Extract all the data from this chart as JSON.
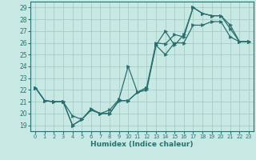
{
  "xlabel": "Humidex (Indice chaleur)",
  "xlim": [
    -0.5,
    23.5
  ],
  "ylim": [
    18.5,
    29.5
  ],
  "xticks": [
    0,
    1,
    2,
    3,
    4,
    5,
    6,
    7,
    8,
    9,
    10,
    11,
    12,
    13,
    14,
    15,
    16,
    17,
    18,
    19,
    20,
    21,
    22,
    23
  ],
  "yticks": [
    19,
    20,
    21,
    22,
    23,
    24,
    25,
    26,
    27,
    28,
    29
  ],
  "bg_color": "#c8e8e4",
  "grid_color": "#a0c8c4",
  "line_color": "#2a7070",
  "line1_x": [
    0,
    1,
    2,
    3,
    4,
    5,
    6,
    7,
    8,
    9,
    10,
    11,
    12,
    13,
    14,
    15,
    16,
    17,
    18,
    19,
    20,
    21,
    22,
    23
  ],
  "line1_y": [
    22.2,
    21.1,
    21.0,
    21.0,
    19.8,
    19.5,
    20.4,
    20.0,
    20.3,
    21.2,
    24.0,
    21.8,
    22.0,
    25.8,
    27.0,
    25.8,
    26.7,
    29.0,
    28.5,
    28.3,
    28.3,
    27.2,
    26.1,
    26.1
  ],
  "line2_x": [
    0,
    1,
    2,
    3,
    4,
    5,
    6,
    7,
    8,
    9,
    10,
    11,
    12,
    13,
    14,
    15,
    16,
    17,
    18,
    19,
    20,
    21,
    22,
    23
  ],
  "line2_y": [
    22.2,
    21.1,
    21.0,
    21.0,
    19.0,
    19.5,
    20.3,
    20.0,
    20.0,
    21.1,
    21.1,
    21.8,
    22.2,
    26.0,
    25.9,
    26.7,
    26.5,
    29.0,
    28.5,
    28.3,
    28.3,
    27.5,
    26.1,
    26.1
  ],
  "line3_x": [
    0,
    1,
    2,
    3,
    4,
    5,
    6,
    7,
    8,
    9,
    10,
    11,
    12,
    13,
    14,
    15,
    16,
    17,
    18,
    19,
    20,
    21,
    22,
    23
  ],
  "line3_y": [
    22.2,
    21.1,
    21.0,
    21.0,
    19.0,
    19.5,
    20.3,
    20.0,
    20.0,
    21.1,
    21.1,
    21.8,
    22.2,
    25.8,
    25.0,
    26.0,
    26.0,
    27.5,
    27.5,
    27.8,
    27.8,
    26.5,
    26.1,
    26.1
  ]
}
